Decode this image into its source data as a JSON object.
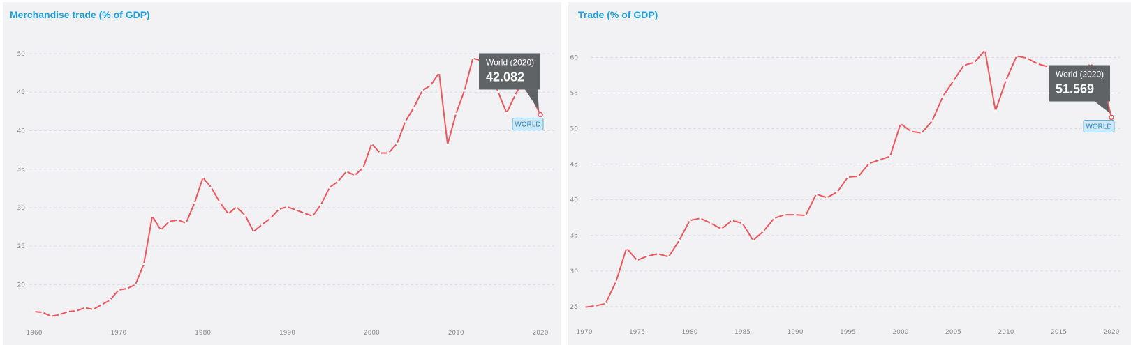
{
  "colors": {
    "title": "#1a9fe0",
    "line": "#f2545b",
    "tooltip_bg": "#5f6366",
    "tag_bg": "#cde8f6",
    "tag_border": "#5fb0de",
    "grid": "#dcdce2",
    "panel_bg": "#f2f2f5"
  },
  "chart_data": [
    {
      "type": "line",
      "title": "Merchandise trade (% of GDP)",
      "xlabel": "",
      "ylabel": "",
      "xlim": [
        1960,
        2020
      ],
      "ylim": [
        15.6,
        50
      ],
      "x_ticks": [
        1960,
        1970,
        1980,
        1990,
        2000,
        2010,
        2020
      ],
      "y_ticks": [
        20,
        25,
        30,
        35,
        40,
        45,
        50
      ],
      "grid": "horizontal-dashed",
      "series": [
        {
          "x": [
            1960,
            1961,
            1962,
            1963,
            1964,
            1965,
            1966,
            1967,
            1968,
            1969,
            1970,
            1971,
            1972,
            1973,
            1974,
            1975,
            1976,
            1977,
            1978,
            1979,
            1980,
            1981,
            1982,
            1983,
            1984,
            1985,
            1986,
            1987,
            1988,
            1989,
            1990,
            1991,
            1992,
            1993,
            1994,
            1995,
            1996,
            1997,
            1998,
            1999,
            2000,
            2001,
            2002,
            2003,
            2004,
            2005,
            2006,
            2007,
            2008,
            2009,
            2010,
            2011,
            2012,
            2013,
            2014,
            2015,
            2016,
            2017,
            2018,
            2019,
            2020
          ],
          "values": [
            16.5,
            16.4,
            15.9,
            16.1,
            16.5,
            16.6,
            17.0,
            16.8,
            17.4,
            18.0,
            19.3,
            19.5,
            20.0,
            22.7,
            28.9,
            27.1,
            28.2,
            28.4,
            28.0,
            30.6,
            33.9,
            32.6,
            30.7,
            29.2,
            30.1,
            29.0,
            26.9,
            27.8,
            28.6,
            29.8,
            30.1,
            29.7,
            29.3,
            28.9,
            30.4,
            32.6,
            33.4,
            34.7,
            34.2,
            35.2,
            38.3,
            37.1,
            37.1,
            38.3,
            41.2,
            43.0,
            45.2,
            45.9,
            47.5,
            38.2,
            42.2,
            45.2,
            49.4,
            49.1,
            47.9,
            45.0,
            42.3,
            44.6,
            46.6,
            44.3,
            42.082
          ]
        }
      ],
      "annotation": {
        "label": "World (2020)",
        "value": "42.082",
        "tag": "WORLD"
      }
    },
    {
      "type": "line",
      "title": "Trade (% of GDP)",
      "xlabel": "",
      "ylabel": "",
      "xlim": [
        1970,
        2020
      ],
      "ylim": [
        24.2,
        62
      ],
      "x_ticks": [
        1970,
        1975,
        1980,
        1985,
        1990,
        1995,
        2000,
        2005,
        2010,
        2015,
        2020
      ],
      "y_ticks": [
        25,
        30,
        35,
        40,
        45,
        50,
        55,
        60
      ],
      "grid": "horizontal-dashed",
      "series": [
        {
          "x": [
            1970,
            1971,
            1972,
            1973,
            1974,
            1975,
            1976,
            1977,
            1978,
            1979,
            1980,
            1981,
            1982,
            1983,
            1984,
            1985,
            1986,
            1987,
            1988,
            1989,
            1990,
            1991,
            1992,
            1993,
            1994,
            1995,
            1996,
            1997,
            1998,
            1999,
            2000,
            2001,
            2002,
            2003,
            2004,
            2005,
            2006,
            2007,
            2008,
            2009,
            2010,
            2011,
            2012,
            2013,
            2014,
            2015,
            2016,
            2017,
            2018,
            2019,
            2020
          ],
          "values": [
            24.9,
            25.1,
            25.4,
            28.5,
            33.2,
            31.5,
            32.1,
            32.4,
            32.0,
            34.3,
            37.1,
            37.4,
            36.7,
            35.9,
            37.1,
            36.7,
            34.3,
            35.6,
            37.4,
            37.9,
            37.9,
            37.8,
            40.8,
            40.3,
            41.1,
            43.2,
            43.3,
            45.1,
            45.6,
            46.1,
            50.7,
            49.6,
            49.4,
            51.1,
            54.5,
            56.7,
            58.9,
            59.3,
            61.0,
            52.5,
            56.8,
            60.2,
            59.9,
            59.1,
            58.7,
            56.3,
            55.1,
            57.5,
            59.1,
            57.8,
            51.569
          ]
        }
      ],
      "annotation": {
        "label": "World (2020)",
        "value": "51.569",
        "tag": "WORLD"
      }
    }
  ]
}
